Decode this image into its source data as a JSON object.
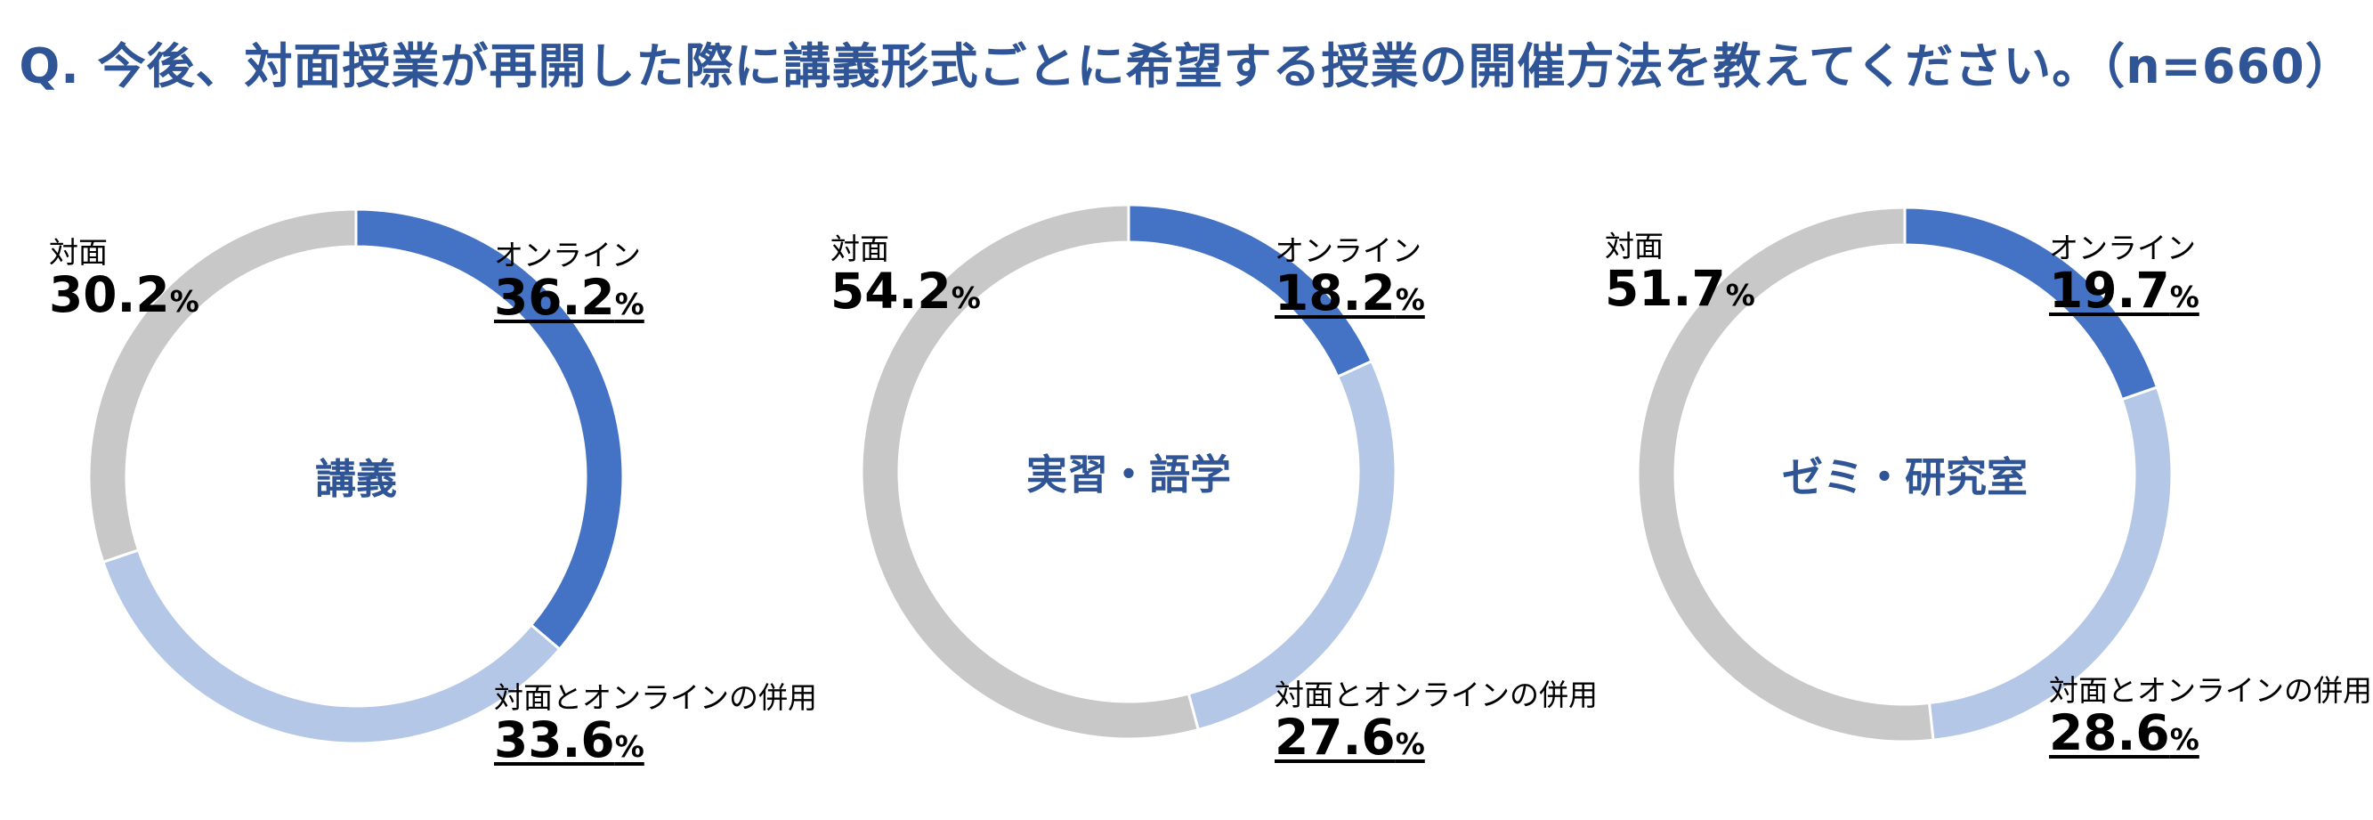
{
  "title": "Q. 今後、対面授業が再開した際に講義形式ごとに希望する授業の開催方法を教えてください。（n=660）",
  "colors": {
    "title": "#2f5597",
    "online": "#4472c4",
    "mixed": "#b4c7e7",
    "face": "#c8c8c8"
  },
  "chart_data": [
    {
      "type": "pie",
      "name": "講義",
      "slices": [
        {
          "label": "オンライン",
          "value": 36.2,
          "color": "#4472c4"
        },
        {
          "label": "対面とオンラインの併用",
          "value": 33.6,
          "color": "#b4c7e7"
        },
        {
          "label": "対面",
          "value": 30.2,
          "color": "#c8c8c8"
        }
      ]
    },
    {
      "type": "pie",
      "name": "実習・語学",
      "slices": [
        {
          "label": "オンライン",
          "value": 18.2,
          "color": "#4472c4"
        },
        {
          "label": "対面とオンラインの併用",
          "value": 27.6,
          "color": "#b4c7e7"
        },
        {
          "label": "対面",
          "value": 54.2,
          "color": "#c8c8c8"
        }
      ]
    },
    {
      "type": "pie",
      "name": "ゼミ・研究室",
      "slices": [
        {
          "label": "オンライン",
          "value": 19.7,
          "color": "#4472c4"
        },
        {
          "label": "対面とオンラインの併用",
          "value": 28.6,
          "color": "#b4c7e7"
        },
        {
          "label": "対面",
          "value": 51.7,
          "color": "#c8c8c8"
        }
      ]
    }
  ],
  "labels": [
    {
      "center": "講義",
      "online": {
        "label": "オンライン",
        "value": "36.2",
        "unit": "%"
      },
      "mixed": {
        "label": "対面とオンラインの併用",
        "value": "33.6",
        "unit": "%"
      },
      "face": {
        "label": "対面",
        "value": "30.2",
        "unit": "%"
      }
    },
    {
      "center": "実習・語学",
      "online": {
        "label": "オンライン",
        "value": "18.2",
        "unit": "%"
      },
      "mixed": {
        "label": "対面とオンラインの併用",
        "value": "27.6",
        "unit": "%"
      },
      "face": {
        "label": "対面",
        "value": "54.2",
        "unit": "%"
      }
    },
    {
      "center": "ゼミ・研究室",
      "online": {
        "label": "オンライン",
        "value": "19.7",
        "unit": "%"
      },
      "mixed": {
        "label": "対面とオンラインの併用",
        "value": "28.6",
        "unit": "%"
      },
      "face": {
        "label": "対面",
        "value": "51.7",
        "unit": "%"
      }
    }
  ]
}
